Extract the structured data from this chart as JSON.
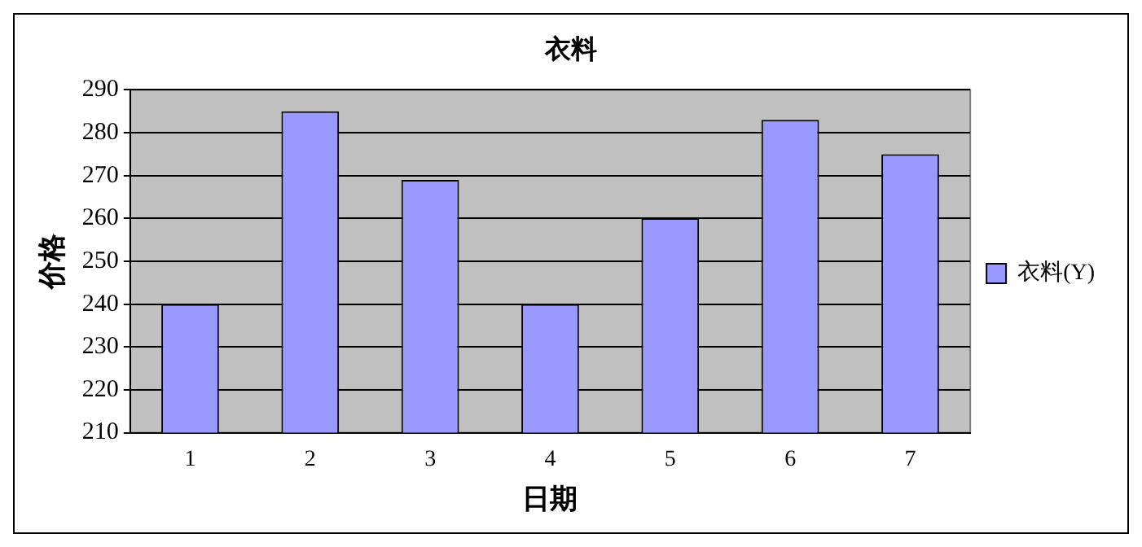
{
  "chart_data": {
    "type": "bar",
    "title": "衣料",
    "xlabel": "日期",
    "ylabel": "价格",
    "categories": [
      "1",
      "2",
      "3",
      "4",
      "5",
      "6",
      "7"
    ],
    "series": [
      {
        "name": "衣料(Y)",
        "color": "#9999ff",
        "values": [
          240,
          285,
          269,
          240,
          260,
          283,
          275
        ]
      }
    ],
    "ylim": [
      210,
      290
    ],
    "yticks": [
      210,
      220,
      230,
      240,
      250,
      260,
      270,
      280,
      290
    ],
    "grid": "y",
    "legend": "right"
  }
}
